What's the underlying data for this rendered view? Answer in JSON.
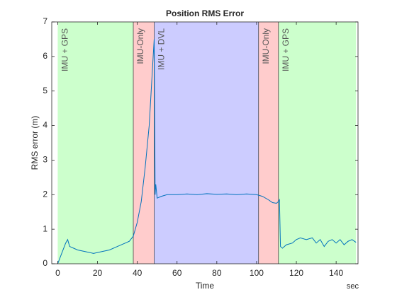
{
  "chart_data": {
    "type": "line",
    "title": "Position RMS Error",
    "xlabel": "Time",
    "xunit": "sec",
    "ylabel": "RMS error (m)",
    "xlim": [
      -3,
      151
    ],
    "ylim": [
      0,
      7
    ],
    "xticks": [
      0,
      20,
      40,
      60,
      80,
      100,
      120,
      140
    ],
    "yticks": [
      0,
      1,
      2,
      3,
      4,
      5,
      6,
      7
    ],
    "regions": [
      {
        "label": "IMU + GPS",
        "start": 0,
        "end": 38,
        "color": "#ccffcc"
      },
      {
        "label": "IMU-Only",
        "start": 38,
        "end": 48.5,
        "color": "#ffcccc"
      },
      {
        "label": "IMU + DVL",
        "start": 48.5,
        "end": 101,
        "color": "#ccccff"
      },
      {
        "label": "IMU-Only",
        "start": 101,
        "end": 111,
        "color": "#ffcccc"
      },
      {
        "label": "IMU + GPS",
        "start": 111,
        "end": 150,
        "color": "#ccffcc"
      }
    ],
    "x": [
      0,
      2,
      4,
      5,
      6,
      8,
      10,
      14,
      18,
      22,
      26,
      30,
      34,
      36,
      38,
      40,
      42,
      44,
      46,
      47,
      48,
      48.5,
      49,
      49.3,
      50,
      52,
      55,
      60,
      65,
      70,
      75,
      80,
      85,
      90,
      95,
      100,
      103,
      106,
      108,
      110,
      111,
      111.5,
      112,
      113,
      115,
      118,
      120,
      122,
      125,
      128,
      130,
      132,
      134,
      136,
      138,
      140,
      142,
      144,
      146,
      148,
      150
    ],
    "series": [
      {
        "name": "RMS error",
        "color": "#0072bd",
        "values": [
          0.0,
          0.3,
          0.6,
          0.7,
          0.5,
          0.45,
          0.4,
          0.35,
          0.3,
          0.35,
          0.4,
          0.5,
          0.6,
          0.65,
          0.8,
          1.2,
          1.8,
          2.8,
          4.0,
          5.0,
          6.0,
          6.5,
          2.0,
          2.3,
          1.9,
          1.95,
          2.0,
          2.0,
          2.02,
          2.0,
          2.03,
          2.01,
          2.02,
          2.0,
          2.02,
          2.0,
          1.95,
          1.85,
          1.77,
          1.75,
          1.8,
          1.85,
          0.5,
          0.45,
          0.55,
          0.6,
          0.7,
          0.75,
          0.7,
          0.75,
          0.6,
          0.7,
          0.5,
          0.65,
          0.7,
          0.6,
          0.7,
          0.55,
          0.65,
          0.7,
          0.62
        ]
      }
    ]
  }
}
